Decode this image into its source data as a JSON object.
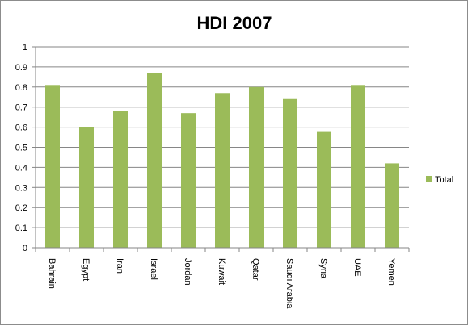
{
  "chart_data": {
    "type": "bar",
    "title": "HDI 2007",
    "xlabel": "",
    "ylabel": "",
    "categories": [
      "Bahrain",
      "Egypt",
      "Iran",
      "Israel",
      "Jordan",
      "Kuwait",
      "Qatar",
      "Saudi Arabia",
      "Syria",
      "UAE",
      "Yemen"
    ],
    "series": [
      {
        "name": "Total",
        "values": [
          0.81,
          0.6,
          0.68,
          0.87,
          0.67,
          0.77,
          0.8,
          0.74,
          0.58,
          0.81,
          0.42
        ]
      }
    ],
    "ylim": [
      0,
      1
    ],
    "yticks": [
      "0",
      "0.1",
      "0.2",
      "0.3",
      "0.4",
      "0.5",
      "0.6",
      "0.7",
      "0.8",
      "0.9",
      "1"
    ],
    "grid": true,
    "legend": "right",
    "colors": {
      "bar": "#9bbb59",
      "grid": "#868686",
      "axis": "#868686"
    }
  }
}
